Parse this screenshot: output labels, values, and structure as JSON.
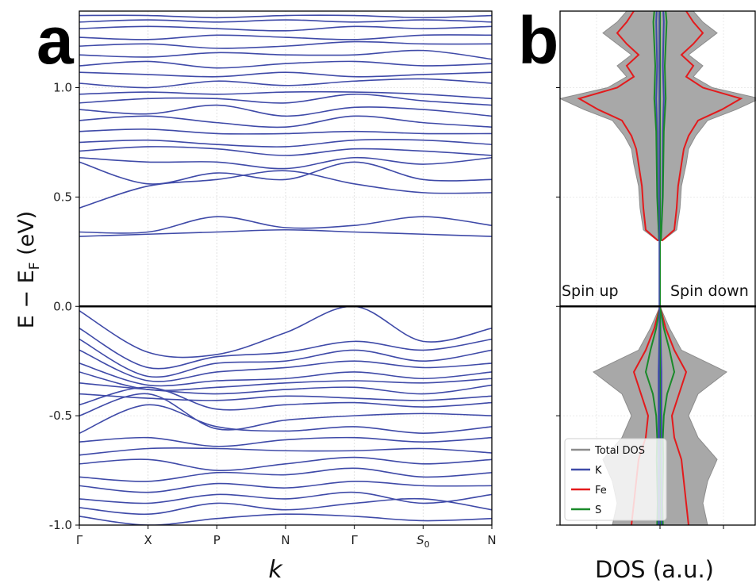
{
  "figure": {
    "panel_a_label": "a",
    "panel_b_label": "b"
  },
  "chart_data": [
    {
      "type": "line",
      "panel": "a",
      "xlabel": "k",
      "ylabel_main": "E − E",
      "ylabel_sub": "F",
      "ylabel_unit": " (eV)",
      "ylim": [
        -1.0,
        1.35
      ],
      "yticks": [
        -1.0,
        -0.5,
        0.0,
        0.5,
        1.0
      ],
      "ytick_labels": [
        "-1.0",
        "-0.5",
        "0.0",
        "0.5",
        "1.0"
      ],
      "x_points": [
        "Γ",
        "X",
        "P",
        "N",
        "Γ",
        "S",
        "N"
      ],
      "x_point_subscripts": [
        "",
        "",
        "",
        "",
        "",
        "0",
        ""
      ],
      "fermi_level": 0.0,
      "band_color": "#3f4aa8",
      "bands": [
        [
          0.32,
          0.33,
          0.34,
          0.35,
          0.34,
          0.33,
          0.32
        ],
        [
          0.34,
          0.34,
          0.41,
          0.36,
          0.37,
          0.41,
          0.37
        ],
        [
          0.45,
          0.55,
          0.58,
          0.62,
          0.56,
          0.52,
          0.52
        ],
        [
          0.66,
          0.56,
          0.61,
          0.58,
          0.66,
          0.58,
          0.58
        ],
        [
          0.68,
          0.66,
          0.66,
          0.63,
          0.68,
          0.65,
          0.68
        ],
        [
          0.71,
          0.73,
          0.72,
          0.69,
          0.72,
          0.71,
          0.69
        ],
        [
          0.75,
          0.76,
          0.74,
          0.73,
          0.76,
          0.76,
          0.74
        ],
        [
          0.8,
          0.81,
          0.79,
          0.79,
          0.8,
          0.79,
          0.79
        ],
        [
          0.85,
          0.87,
          0.84,
          0.82,
          0.87,
          0.84,
          0.82
        ],
        [
          0.9,
          0.88,
          0.92,
          0.87,
          0.91,
          0.9,
          0.87
        ],
        [
          0.93,
          0.95,
          0.95,
          0.93,
          0.97,
          0.94,
          0.92
        ],
        [
          0.97,
          0.98,
          0.97,
          0.98,
          0.98,
          0.97,
          0.95
        ],
        [
          1.02,
          1.0,
          1.03,
          1.01,
          1.03,
          1.04,
          1.02
        ],
        [
          1.07,
          1.06,
          1.05,
          1.07,
          1.05,
          1.06,
          1.07
        ],
        [
          1.1,
          1.12,
          1.09,
          1.11,
          1.12,
          1.1,
          1.11
        ],
        [
          1.15,
          1.14,
          1.16,
          1.15,
          1.15,
          1.17,
          1.13
        ],
        [
          1.19,
          1.2,
          1.18,
          1.19,
          1.21,
          1.2,
          1.2
        ],
        [
          1.23,
          1.22,
          1.24,
          1.23,
          1.22,
          1.24,
          1.24
        ],
        [
          1.27,
          1.28,
          1.27,
          1.26,
          1.28,
          1.27,
          1.28
        ],
        [
          1.3,
          1.31,
          1.3,
          1.31,
          1.3,
          1.31,
          1.3
        ],
        [
          1.33,
          1.33,
          1.32,
          1.33,
          1.33,
          1.32,
          1.33
        ],
        [
          -0.02,
          -0.21,
          -0.22,
          -0.12,
          0.0,
          -0.16,
          -0.1
        ],
        [
          -0.1,
          -0.28,
          -0.23,
          -0.21,
          -0.16,
          -0.2,
          -0.15
        ],
        [
          -0.15,
          -0.32,
          -0.26,
          -0.25,
          -0.2,
          -0.25,
          -0.2
        ],
        [
          -0.2,
          -0.34,
          -0.3,
          -0.28,
          -0.25,
          -0.28,
          -0.26
        ],
        [
          -0.26,
          -0.36,
          -0.34,
          -0.33,
          -0.3,
          -0.33,
          -0.3
        ],
        [
          -0.3,
          -0.38,
          -0.37,
          -0.35,
          -0.34,
          -0.35,
          -0.33
        ],
        [
          -0.35,
          -0.38,
          -0.4,
          -0.38,
          -0.37,
          -0.4,
          -0.36
        ],
        [
          -0.4,
          -0.42,
          -0.43,
          -0.41,
          -0.42,
          -0.43,
          -0.41
        ],
        [
          -0.45,
          -0.37,
          -0.47,
          -0.45,
          -0.44,
          -0.46,
          -0.44
        ],
        [
          -0.5,
          -0.4,
          -0.56,
          -0.52,
          -0.5,
          -0.49,
          -0.5
        ],
        [
          -0.58,
          -0.45,
          -0.55,
          -0.57,
          -0.55,
          -0.58,
          -0.55
        ],
        [
          -0.62,
          -0.6,
          -0.64,
          -0.61,
          -0.6,
          -0.62,
          -0.6
        ],
        [
          -0.68,
          -0.65,
          -0.65,
          -0.66,
          -0.66,
          -0.65,
          -0.67
        ],
        [
          -0.72,
          -0.7,
          -0.75,
          -0.72,
          -0.69,
          -0.72,
          -0.7
        ],
        [
          -0.78,
          -0.8,
          -0.76,
          -0.77,
          -0.74,
          -0.78,
          -0.76
        ],
        [
          -0.82,
          -0.85,
          -0.81,
          -0.83,
          -0.8,
          -0.82,
          -0.82
        ],
        [
          -0.88,
          -0.9,
          -0.86,
          -0.88,
          -0.85,
          -0.9,
          -0.86
        ],
        [
          -0.92,
          -0.95,
          -0.9,
          -0.93,
          -0.9,
          -0.88,
          -0.93
        ],
        [
          -0.96,
          -1.0,
          -0.97,
          -0.95,
          -0.96,
          -0.98,
          -0.97
        ]
      ]
    },
    {
      "type": "area",
      "panel": "b",
      "xlabel": "DOS (a.u.)",
      "ylim": [
        -1.0,
        1.35
      ],
      "yticks": [
        -1.0,
        -0.5,
        0.0,
        0.5,
        1.0
      ],
      "annotations": [
        "Spin up",
        "Spin down"
      ],
      "legend_position": "lower-left",
      "series": [
        {
          "name": "Total DOS",
          "color": "#8c8c8c",
          "e": [
            0.3,
            0.35,
            0.45,
            0.55,
            0.65,
            0.72,
            0.78,
            0.85,
            0.9,
            0.95,
            1.0,
            1.05,
            1.1,
            1.15,
            1.2,
            1.25,
            1.3,
            1.35
          ],
          "dos": [
            0.05,
            0.35,
            0.42,
            0.45,
            0.55,
            0.6,
            0.75,
            1.0,
            1.6,
            2.1,
            1.1,
            0.7,
            0.9,
            0.6,
            0.9,
            1.2,
            0.9,
            0.7
          ]
        },
        {
          "name": "K",
          "color": "#3f4aa8",
          "e": [
            0.3,
            0.5,
            0.8,
            0.95,
            1.1,
            1.3,
            1.35
          ],
          "dos": [
            0.02,
            0.05,
            0.06,
            0.08,
            0.06,
            0.08,
            0.07
          ]
        },
        {
          "name": "Fe",
          "color": "#e31a1c",
          "e": [
            0.3,
            0.35,
            0.45,
            0.55,
            0.65,
            0.72,
            0.78,
            0.85,
            0.9,
            0.95,
            1.0,
            1.05,
            1.1,
            1.15,
            1.2,
            1.25,
            1.3,
            1.35
          ],
          "dos": [
            0.04,
            0.3,
            0.35,
            0.38,
            0.45,
            0.5,
            0.6,
            0.8,
            1.3,
            1.7,
            0.9,
            0.55,
            0.7,
            0.45,
            0.7,
            0.9,
            0.7,
            0.55
          ]
        },
        {
          "name": "S",
          "color": "#1a8a2a",
          "e": [
            0.3,
            0.5,
            0.8,
            0.95,
            1.1,
            1.3,
            1.35
          ],
          "dos": [
            0.02,
            0.06,
            0.08,
            0.12,
            0.1,
            0.14,
            0.12
          ]
        }
      ],
      "series_below_fermi": [
        {
          "name": "Total DOS",
          "color": "#8c8c8c",
          "e": [
            0.0,
            -0.1,
            -0.2,
            -0.3,
            -0.4,
            -0.5,
            -0.6,
            -0.7,
            -0.8,
            -0.9,
            -1.0
          ],
          "dos": [
            0.0,
            0.2,
            0.45,
            1.4,
            0.8,
            0.6,
            0.8,
            1.2,
            1.0,
            0.9,
            1.0
          ]
        },
        {
          "name": "Fe",
          "color": "#e31a1c",
          "e": [
            0.0,
            -0.1,
            -0.2,
            -0.3,
            -0.4,
            -0.5,
            -0.6,
            -0.7,
            -0.8,
            -0.9,
            -1.0
          ],
          "dos": [
            0.0,
            0.12,
            0.3,
            0.55,
            0.4,
            0.25,
            0.3,
            0.45,
            0.5,
            0.55,
            0.6
          ]
        },
        {
          "name": "S",
          "color": "#1a8a2a",
          "e": [
            0.0,
            -0.1,
            -0.2,
            -0.3,
            -0.4,
            -0.5,
            -0.6,
            -0.7,
            -0.8,
            -0.9,
            -1.0
          ],
          "dos": [
            0.0,
            0.08,
            0.2,
            0.3,
            0.15,
            0.08,
            0.06,
            0.07,
            0.06,
            0.05,
            0.06
          ]
        },
        {
          "name": "K",
          "color": "#3f4aa8",
          "e": [
            0.0,
            -0.3,
            -0.6,
            -1.0
          ],
          "dos": [
            0.0,
            0.03,
            0.03,
            0.03
          ]
        }
      ]
    }
  ]
}
